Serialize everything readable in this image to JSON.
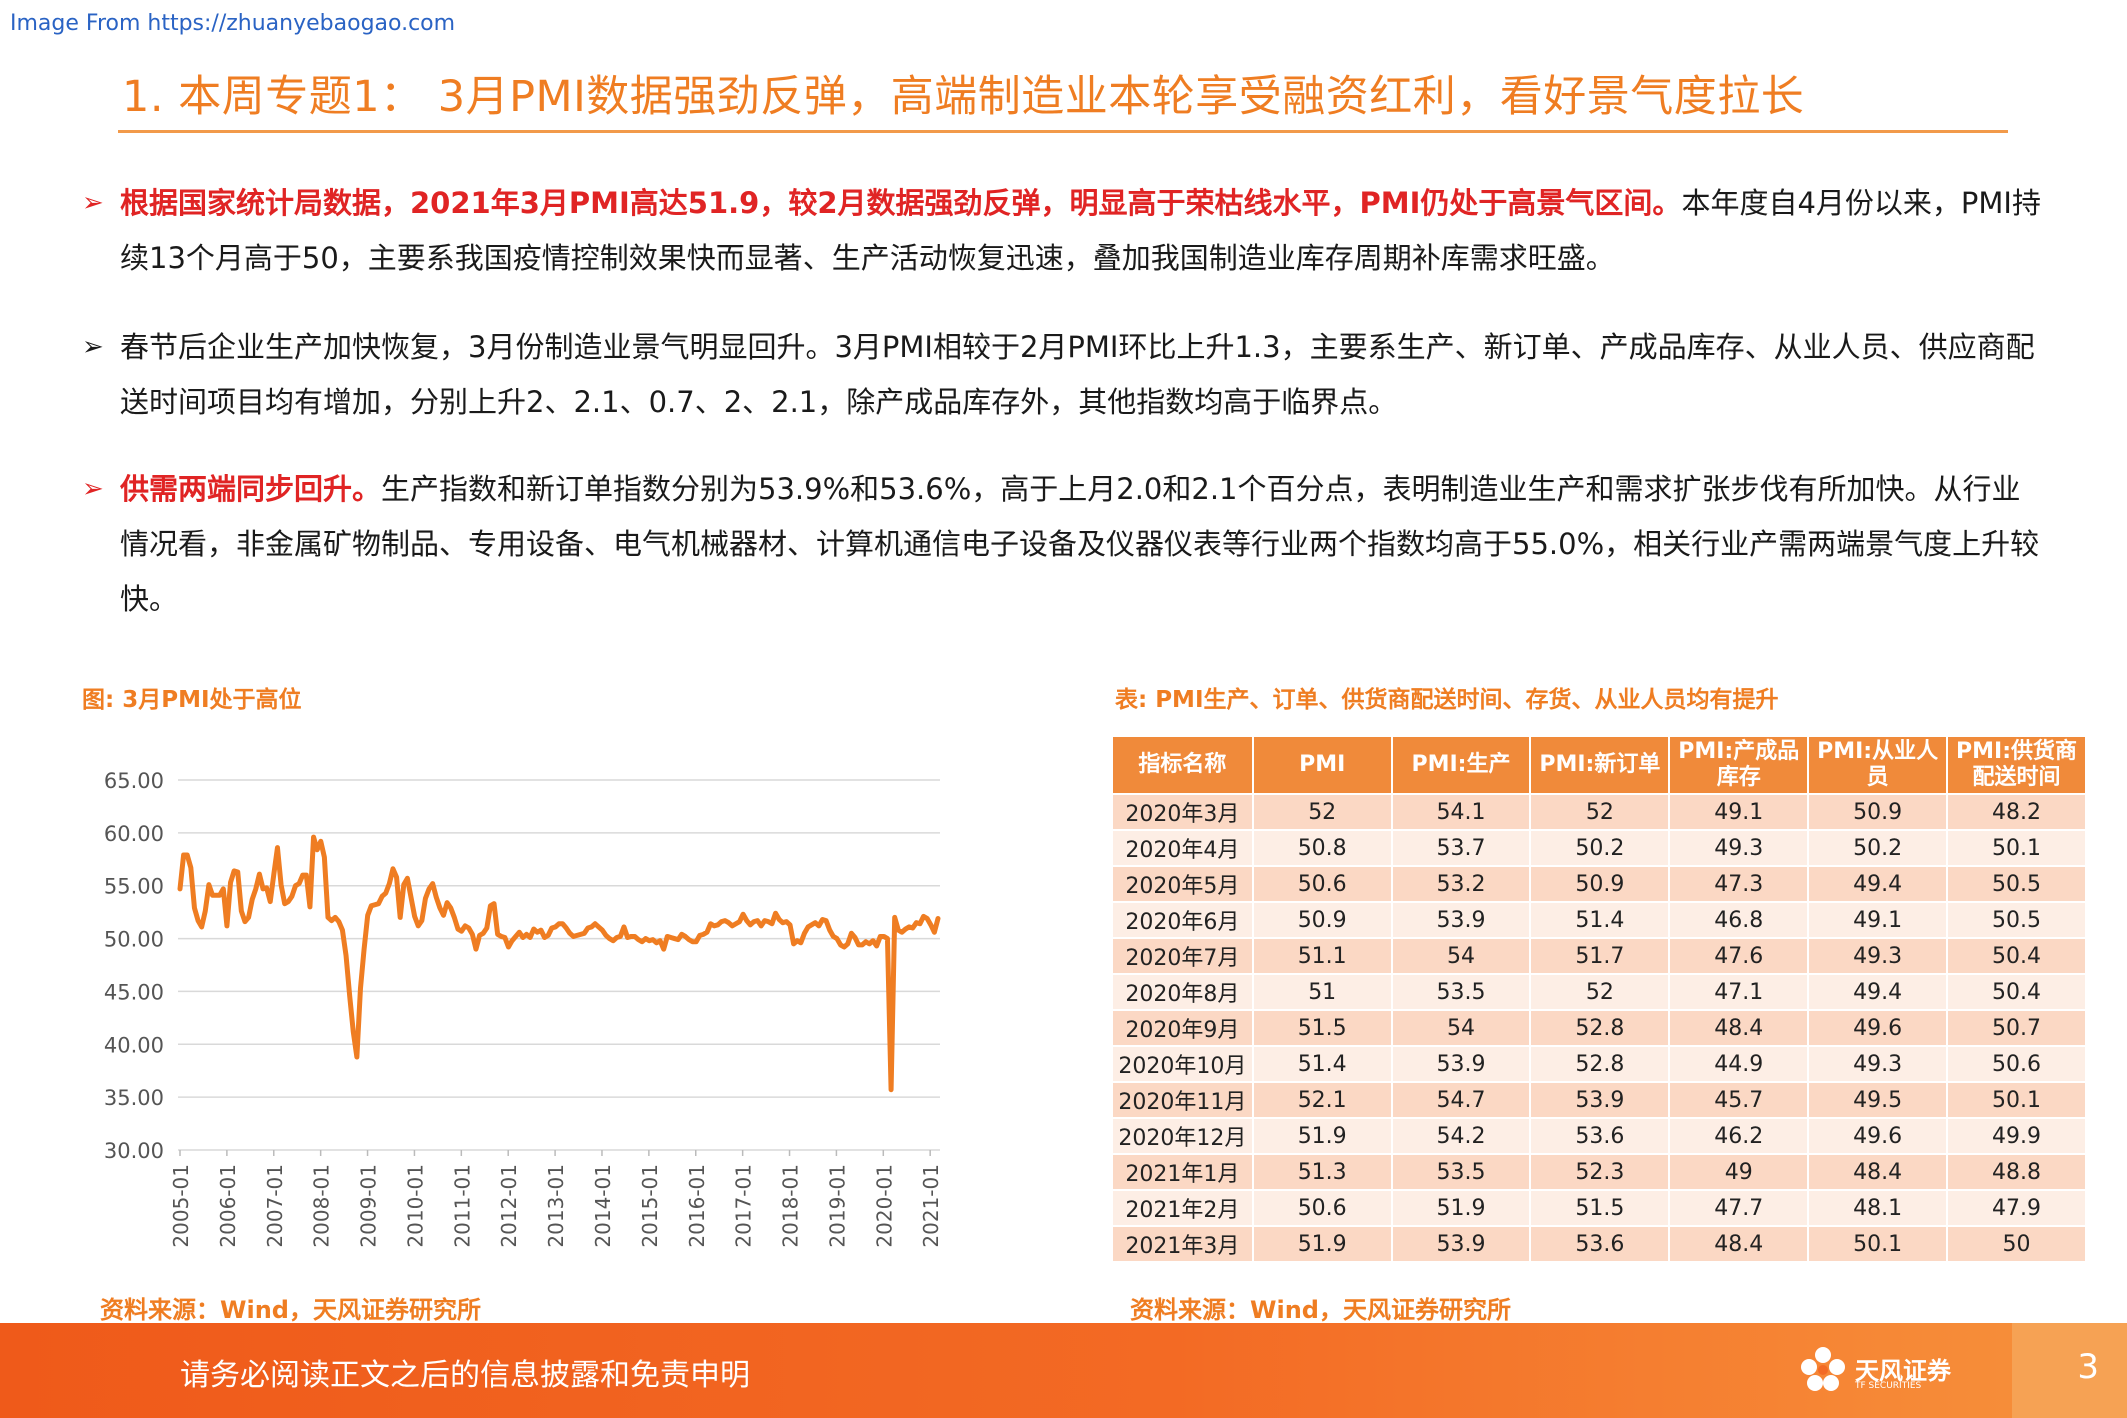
{
  "watermark": "Image From https://zhuanyebaogao.com",
  "title": "1. 本周专题1： 3月PMI数据强劲反弹，高端制造业本轮享受融资红利，看好景气度拉长",
  "bullets": [
    {
      "highlight": "根据国家统计局数据，2021年3月PMI高达51.9，较2月数据强劲反弹，明显高于荣枯线水平，PMI仍处于高景气区间。",
      "text": "本年度自4月份以来，PMI持续13个月高于50，主要系我国疫情控制效果快而显著、生产活动恢复迅速，叠加我国制造业库存周期补库需求旺盛。"
    },
    {
      "highlight": "",
      "text": "春节后企业生产加快恢复，3月份制造业景气明显回升。3月PMI相较于2月PMI环比上升1.3，主要系生产、新订单、产成品库存、从业人员、供应商配送时间项目均有增加，分别上升2、2.1、0.7、2、2.1，除产成品库存外，其他指数均高于临界点。"
    },
    {
      "highlight": "供需两端同步回升。",
      "text": "生产指数和新订单指数分别为53.9%和53.6%，高于上月2.0和2.1个百分点，表明制造业生产和需求扩张步伐有所加快。从行业情况看，非金属矿物制品、专用设备、电气机械器材、计算机通信电子设备及仪器仪表等行业两个指数均高于55.0%，相关行业产需两端景气度上升较快。"
    }
  ],
  "figure_caption": "图: 3月PMI处于高位",
  "table_caption": "表: PMI生产、订单、供货商配送时间、存货、从业人员均有提升",
  "source_left": "资料来源：Wind，天风证券研究所",
  "source_right": "资料来源：Wind，天风证券研究所",
  "chart_data": {
    "type": "line",
    "title": "",
    "xlabel": "",
    "ylabel": "",
    "ylim": [
      30,
      65
    ],
    "yticks": [
      "65.00",
      "60.00",
      "55.00",
      "50.00",
      "45.00",
      "40.00",
      "35.00",
      "30.00"
    ],
    "xticks": [
      "2005-01",
      "2006-01",
      "2007-01",
      "2008-01",
      "2009-01",
      "2010-01",
      "2011-01",
      "2012-01",
      "2013-01",
      "2014-01",
      "2015-01",
      "2016-01",
      "2017-01",
      "2018-01",
      "2019-01",
      "2020-01",
      "2021-01"
    ],
    "x_start": "2005-01",
    "x_end": "2021-03",
    "grid": true,
    "color": "#ef7d22",
    "series": [
      {
        "name": "",
        "values": [
          54.7,
          57.9,
          57.9,
          56.7,
          52.9,
          51.7,
          51.1,
          52.6,
          55.1,
          54.1,
          54.1,
          54.1,
          54.7,
          51.2,
          55.3,
          56.4,
          56.3,
          52.6,
          51.6,
          52.0,
          53.7,
          54.7,
          56.1,
          54.7,
          54.8,
          53.5,
          56.1,
          58.6,
          55.1,
          53.3,
          53.5,
          54.0,
          55.0,
          55.2,
          56.0,
          56.0,
          53.0,
          59.6,
          58.4,
          59.2,
          57.7,
          52.0,
          51.7,
          52.0,
          51.6,
          50.8,
          48.4,
          44.6,
          41.2,
          38.8,
          45.3,
          49.0,
          52.2,
          53.1,
          53.2,
          53.3,
          54.0,
          54.3,
          55.2,
          56.6,
          55.8,
          52.0,
          55.1,
          55.7,
          53.9,
          52.1,
          51.2,
          51.7,
          53.8,
          54.7,
          55.2,
          53.9,
          52.9,
          52.2,
          53.4,
          52.9,
          52.0,
          50.9,
          50.7,
          51.2,
          51.0,
          50.4,
          49.0,
          50.3,
          50.5,
          51.0,
          53.1,
          53.3,
          50.4,
          50.2,
          50.1,
          49.2,
          49.8,
          50.2,
          50.6,
          50.1,
          50.4,
          50.1,
          50.9,
          50.6,
          50.8,
          50.1,
          50.3,
          51.0,
          51.1,
          51.4,
          51.4,
          51.0,
          50.5,
          50.2,
          50.3,
          50.4,
          50.5,
          51.0,
          51.1,
          51.4,
          51.1,
          50.8,
          50.3,
          50.0,
          49.8,
          50.1,
          50.2,
          51.1,
          50.1,
          50.2,
          50.2,
          49.9,
          49.7,
          50.0,
          49.8,
          49.9,
          49.6,
          49.8,
          49.0,
          50.2,
          50.1,
          50.0,
          49.9,
          50.4,
          50.2,
          49.9,
          49.7,
          49.7,
          50.3,
          50.4,
          50.6,
          51.4,
          51.2,
          51.3,
          51.6,
          51.7,
          51.5,
          51.2,
          51.4,
          51.6,
          52.3,
          51.7,
          51.3,
          51.6,
          51.7,
          51.2,
          51.7,
          51.6,
          51.4,
          52.4,
          51.8,
          51.5,
          51.6,
          51.3,
          49.5,
          49.8,
          49.6,
          50.5,
          51.1,
          51.3,
          51.5,
          51.2,
          51.8,
          51.7,
          50.8,
          50.2,
          50.0,
          49.4,
          49.2,
          49.5,
          50.5,
          50.1,
          49.4,
          49.4,
          49.7,
          49.5,
          49.8,
          49.3,
          50.2,
          50.2,
          50.0,
          35.7,
          52.0,
          50.8,
          50.6,
          50.9,
          51.1,
          51.0,
          51.5,
          51.4,
          52.1,
          51.9,
          51.3,
          50.6,
          51.9
        ]
      }
    ]
  },
  "table": {
    "headers": [
      "指标名称",
      "PMI",
      "PMI:生产",
      "PMI:新订单",
      "PMI:产成品库存",
      "PMI:从业人员",
      "PMI:供货商配送时间"
    ],
    "rows": [
      [
        "2020年3月",
        "52",
        "54.1",
        "52",
        "49.1",
        "50.9",
        "48.2"
      ],
      [
        "2020年4月",
        "50.8",
        "53.7",
        "50.2",
        "49.3",
        "50.2",
        "50.1"
      ],
      [
        "2020年5月",
        "50.6",
        "53.2",
        "50.9",
        "47.3",
        "49.4",
        "50.5"
      ],
      [
        "2020年6月",
        "50.9",
        "53.9",
        "51.4",
        "46.8",
        "49.1",
        "50.5"
      ],
      [
        "2020年7月",
        "51.1",
        "54",
        "51.7",
        "47.6",
        "49.3",
        "50.4"
      ],
      [
        "2020年8月",
        "51",
        "53.5",
        "52",
        "47.1",
        "49.4",
        "50.4"
      ],
      [
        "2020年9月",
        "51.5",
        "54",
        "52.8",
        "48.4",
        "49.6",
        "50.7"
      ],
      [
        "2020年10月",
        "51.4",
        "53.9",
        "52.8",
        "44.9",
        "49.3",
        "50.6"
      ],
      [
        "2020年11月",
        "52.1",
        "54.7",
        "53.9",
        "45.7",
        "49.5",
        "50.1"
      ],
      [
        "2020年12月",
        "51.9",
        "54.2",
        "53.6",
        "46.2",
        "49.6",
        "49.9"
      ],
      [
        "2021年1月",
        "51.3",
        "53.5",
        "52.3",
        "49",
        "48.4",
        "48.8"
      ],
      [
        "2021年2月",
        "50.6",
        "51.9",
        "51.5",
        "47.7",
        "48.1",
        "47.9"
      ],
      [
        "2021年3月",
        "51.9",
        "53.9",
        "53.6",
        "48.4",
        "50.1",
        "50"
      ]
    ]
  },
  "footer": {
    "disclaimer": "请务必阅读正文之后的信息披露和免责申明",
    "logo_name": "天风证券",
    "logo_sub": "TF SECURITIES",
    "page_number": "3"
  },
  "colors": {
    "accent": "#ef7d22",
    "highlight": "#e02424",
    "table_header": "#f08a3a",
    "row_odd": "#fbd8c4",
    "row_even": "#fdeee5"
  }
}
